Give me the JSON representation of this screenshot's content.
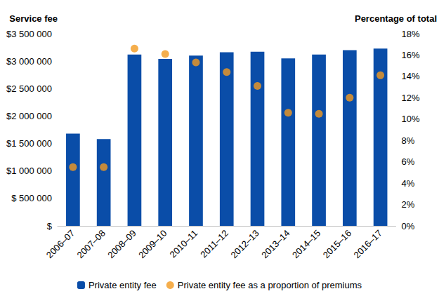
{
  "chart_data": {
    "type": "bar",
    "categories": [
      "2006–07",
      "2007–08",
      "2008–09",
      "2009–10",
      "2010–11",
      "2011–12",
      "2012–13",
      "2013–14",
      "2014–15",
      "2015–16",
      "2016–17"
    ],
    "y_label": "Service fee",
    "y2_label": "Percentage of total",
    "ylim": [
      0,
      3500000
    ],
    "yticks": [
      {
        "value": 0,
        "label": "$"
      },
      {
        "value": 500000,
        "label": "$ 500 000"
      },
      {
        "value": 1000000,
        "label": "$1 000 000"
      },
      {
        "value": 1500000,
        "label": "$1 500 000"
      },
      {
        "value": 2000000,
        "label": "$2 000 000"
      },
      {
        "value": 2500000,
        "label": "$2 500 000"
      },
      {
        "value": 3000000,
        "label": "$3 000 000"
      },
      {
        "value": 3500000,
        "label": "$3 500 000"
      }
    ],
    "y2lim": [
      0,
      18
    ],
    "y2ticks": [
      {
        "value": 0,
        "label": "0%"
      },
      {
        "value": 2,
        "label": "2%"
      },
      {
        "value": 4,
        "label": "4%"
      },
      {
        "value": 6,
        "label": "6%"
      },
      {
        "value": 8,
        "label": "8%"
      },
      {
        "value": 10,
        "label": "10%"
      },
      {
        "value": 12,
        "label": "12%"
      },
      {
        "value": 14,
        "label": "14%"
      },
      {
        "value": 16,
        "label": "16%"
      },
      {
        "value": 18,
        "label": "18%"
      }
    ],
    "grid": false,
    "legend": "bottom",
    "series": [
      {
        "name": "Private entity fee",
        "type": "bar",
        "color": "#0a4da8",
        "values": [
          1680000,
          1580000,
          3120000,
          3040000,
          3100000,
          3160000,
          3170000,
          3050000,
          3120000,
          3200000,
          3230000
        ]
      },
      {
        "name": "Private entity fee as a proportion of premiums",
        "type": "scatter",
        "axis": "y2",
        "marker": "circle",
        "color": "#f39a1f",
        "values": [
          5.5,
          5.5,
          16.6,
          16.1,
          15.3,
          14.4,
          13.1,
          10.6,
          10.5,
          12.0,
          14.1
        ]
      }
    ]
  }
}
